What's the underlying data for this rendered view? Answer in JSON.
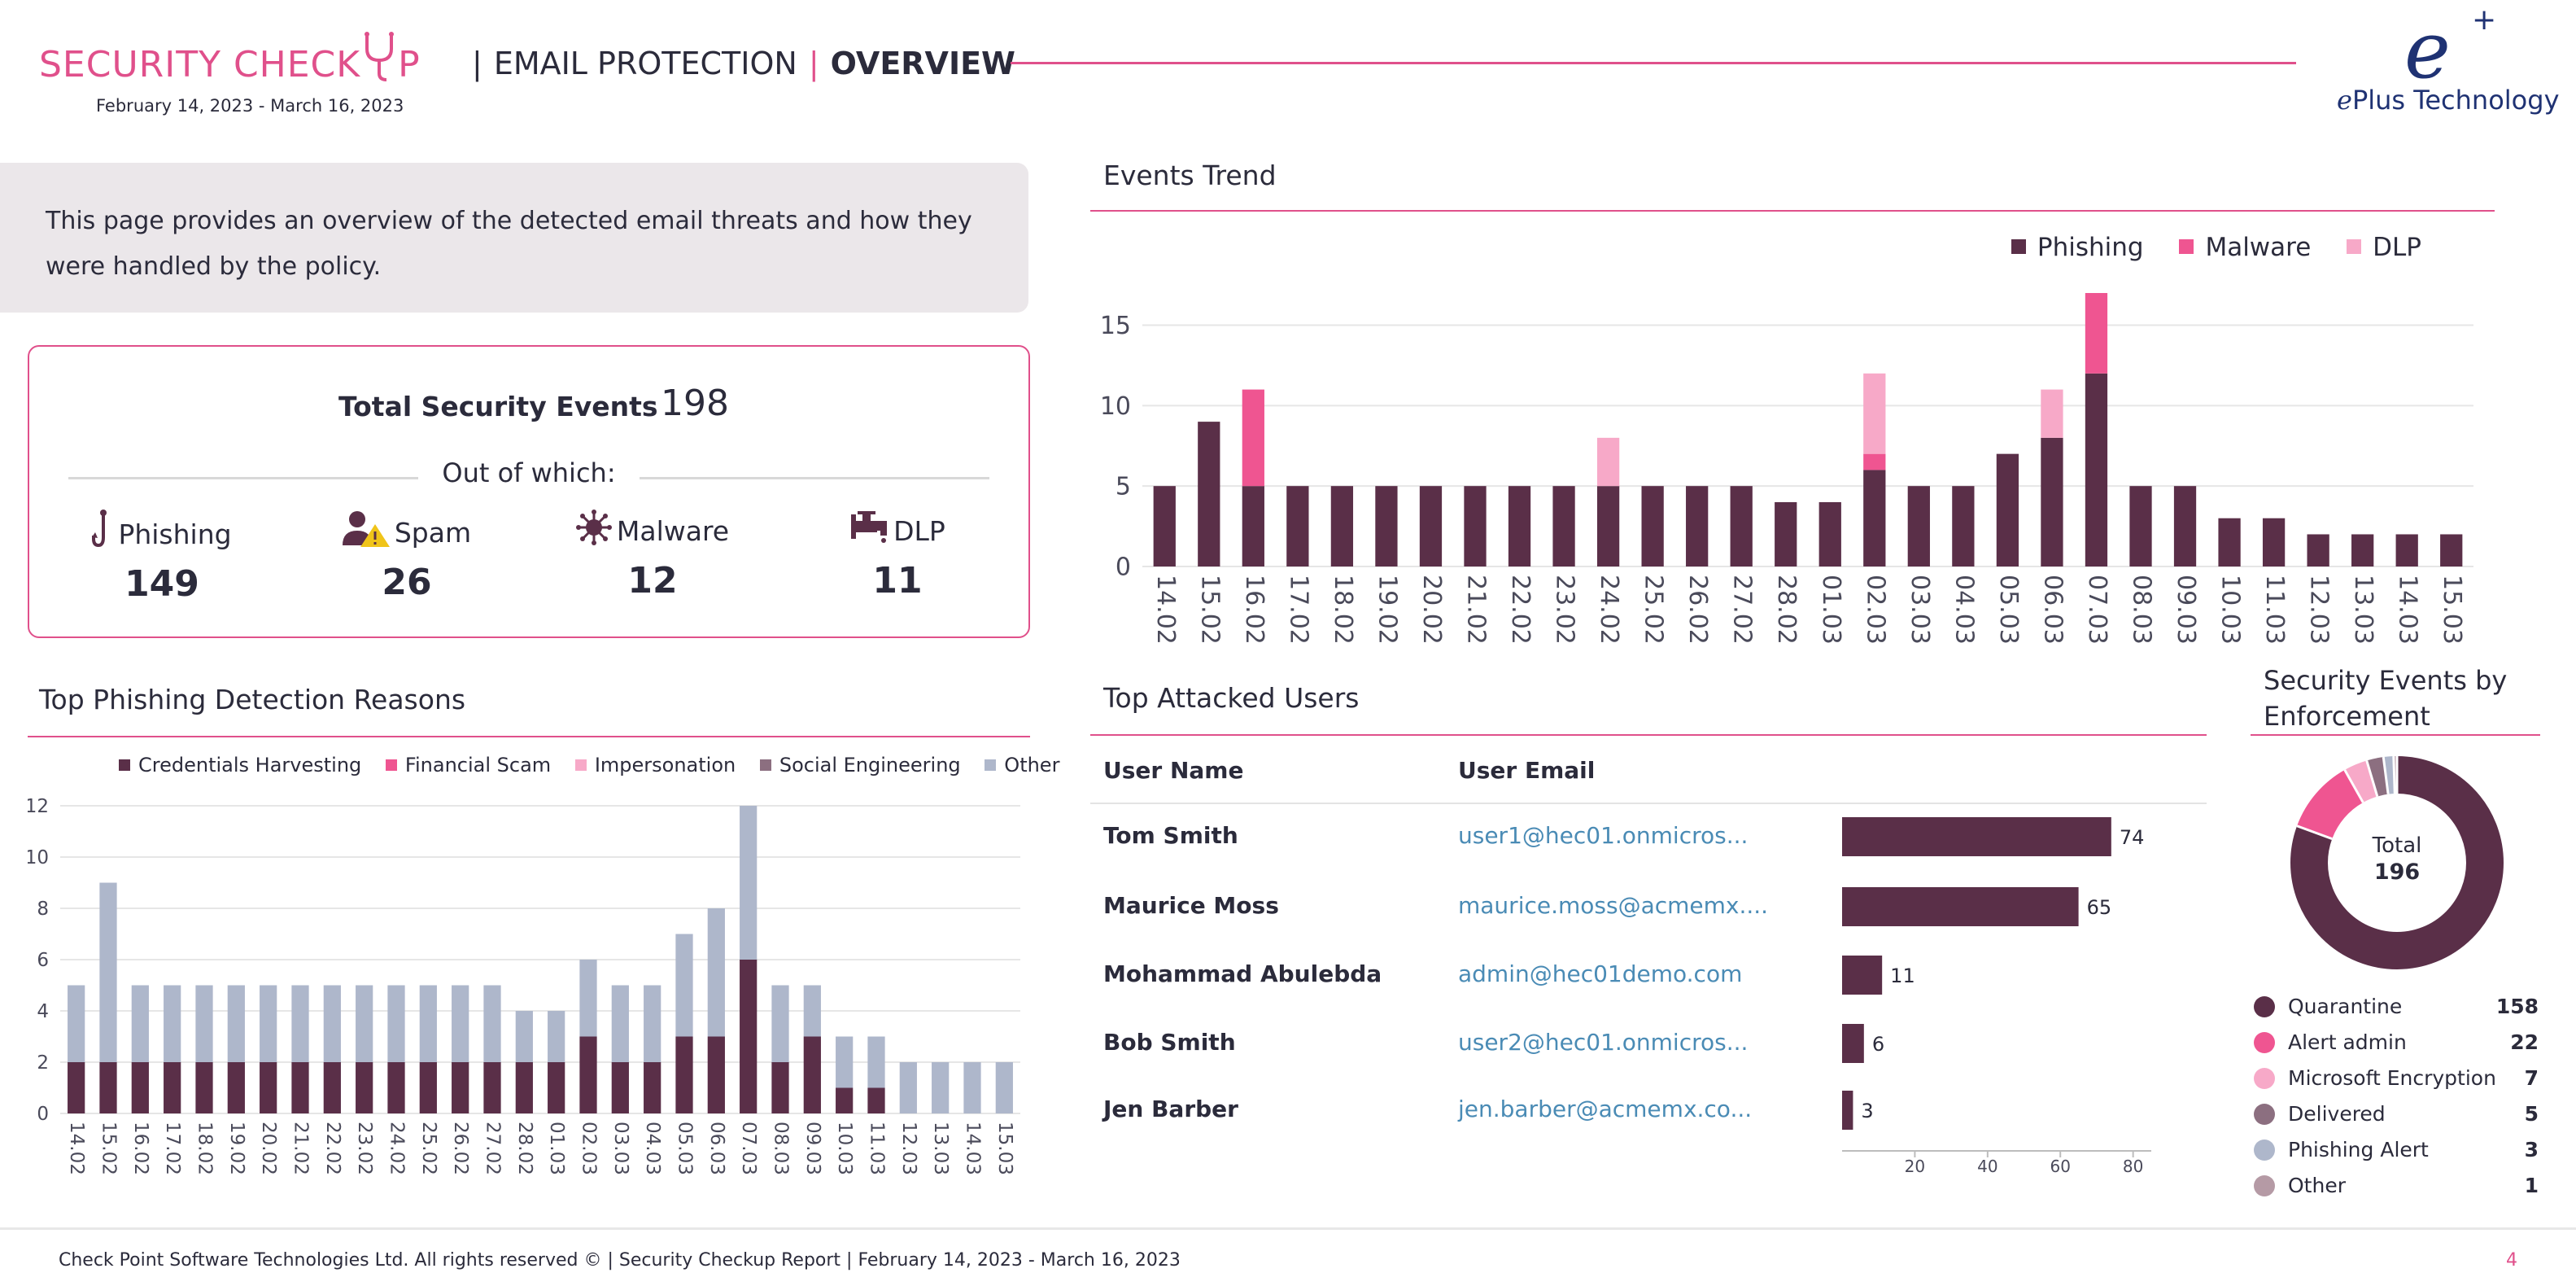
{
  "header": {
    "brand": "SECURITY CHECK",
    "brand_tail": "P",
    "section": "EMAIL PROTECTION",
    "page": "OVERVIEW",
    "date_range": "February 14, 2023 - March 16, 2023",
    "logo_mark": "e",
    "logo_plus": "+",
    "logo_text_e": "e",
    "logo_text": "Plus Technology"
  },
  "intro": "This page provides an overview of the detected email threats and how they were handled by the policy.",
  "summary": {
    "title": "Total Security Events",
    "total": "198",
    "out_of": "Out of which:",
    "items": [
      {
        "label": "Phishing",
        "value": "149",
        "icon": "hook-icon"
      },
      {
        "label": "Spam",
        "value": "26",
        "icon": "spam-user-warning-icon"
      },
      {
        "label": "Malware",
        "value": "12",
        "icon": "virus-icon"
      },
      {
        "label": "DLP",
        "value": "11",
        "icon": "faucet-icon"
      }
    ]
  },
  "colors": {
    "accent": "#e0508b",
    "phishing": "#5a2f48",
    "malware": "#ef5591",
    "dlp": "#f7a9c8",
    "other": "#aeb7cb",
    "social": "#8c6f80",
    "link": "#4a8bb5"
  },
  "events_trend": {
    "title": "Events Trend",
    "legend": [
      "Phishing",
      "Malware",
      "DLP"
    ],
    "chart_data": {
      "type": "bar",
      "stacked": true,
      "categories": [
        "14.02",
        "15.02",
        "16.02",
        "17.02",
        "18.02",
        "19.02",
        "20.02",
        "21.02",
        "22.02",
        "23.02",
        "24.02",
        "25.02",
        "26.02",
        "27.02",
        "28.02",
        "01.03",
        "02.03",
        "03.03",
        "04.03",
        "05.03",
        "06.03",
        "07.03",
        "08.03",
        "09.03",
        "10.03",
        "11.03",
        "12.03",
        "13.03",
        "14.03",
        "15.03"
      ],
      "series": [
        {
          "name": "Phishing",
          "values": [
            5,
            9,
            5,
            5,
            5,
            5,
            5,
            5,
            5,
            5,
            5,
            5,
            5,
            5,
            4,
            4,
            6,
            5,
            5,
            7,
            8,
            12,
            5,
            5,
            3,
            3,
            2,
            2,
            2,
            2
          ]
        },
        {
          "name": "Malware",
          "values": [
            0,
            0,
            6,
            0,
            0,
            0,
            0,
            0,
            0,
            0,
            0,
            0,
            0,
            0,
            0,
            0,
            1,
            0,
            0,
            0,
            0,
            5,
            0,
            0,
            0,
            0,
            0,
            0,
            0,
            0
          ]
        },
        {
          "name": "DLP",
          "values": [
            0,
            0,
            0,
            0,
            0,
            0,
            0,
            0,
            0,
            0,
            3,
            0,
            0,
            0,
            0,
            0,
            5,
            0,
            0,
            0,
            3,
            0,
            0,
            0,
            0,
            0,
            0,
            0,
            0,
            0
          ]
        }
      ],
      "yticks": [
        "0",
        "5",
        "10",
        "15"
      ],
      "ylim": [
        0,
        17
      ],
      "grid": true,
      "legend_position": "top-right"
    }
  },
  "phishing_reasons": {
    "title": "Top Phishing Detection Reasons",
    "legend": [
      "Credentials Harvesting",
      "Financial Scam",
      "Impersonation",
      "Social Engineering",
      "Other"
    ],
    "chart_data": {
      "type": "bar",
      "stacked": true,
      "categories": [
        "14.02",
        "15.02",
        "16.02",
        "17.02",
        "18.02",
        "19.02",
        "20.02",
        "21.02",
        "22.02",
        "23.02",
        "24.02",
        "25.02",
        "26.02",
        "27.02",
        "28.02",
        "01.03",
        "02.03",
        "03.03",
        "04.03",
        "05.03",
        "06.03",
        "07.03",
        "08.03",
        "09.03",
        "10.03",
        "11.03",
        "12.03",
        "13.03",
        "14.03",
        "15.03"
      ],
      "series": [
        {
          "name": "Credentials Harvesting",
          "values": [
            2,
            2,
            2,
            2,
            2,
            2,
            2,
            2,
            2,
            2,
            2,
            2,
            2,
            2,
            2,
            2,
            3,
            2,
            2,
            3,
            3,
            6,
            2,
            3,
            1,
            1,
            0,
            0,
            0,
            0
          ]
        },
        {
          "name": "Financial Scam",
          "values": [
            0,
            0,
            0,
            0,
            0,
            0,
            0,
            0,
            0,
            0,
            0,
            0,
            0,
            0,
            0,
            0,
            0,
            0,
            0,
            0,
            0,
            0,
            0,
            0,
            0,
            0,
            0,
            0,
            0,
            0
          ]
        },
        {
          "name": "Impersonation",
          "values": [
            0,
            0,
            0,
            0,
            0,
            0,
            0,
            0,
            0,
            0,
            0,
            0,
            0,
            0,
            0,
            0,
            0,
            0,
            0,
            0,
            0,
            0,
            0,
            0,
            0,
            0,
            0,
            0,
            0,
            0
          ]
        },
        {
          "name": "Social Engineering",
          "values": [
            0,
            0,
            0,
            0,
            0,
            0,
            0,
            0,
            0,
            0,
            0,
            0,
            0,
            0,
            0,
            0,
            0,
            0,
            0,
            0,
            0,
            0,
            0,
            0,
            0,
            0,
            0,
            0,
            0,
            0
          ]
        },
        {
          "name": "Other",
          "values": [
            3,
            7,
            3,
            3,
            3,
            3,
            3,
            3,
            3,
            3,
            3,
            3,
            3,
            3,
            2,
            2,
            3,
            3,
            3,
            4,
            5,
            6,
            3,
            2,
            2,
            2,
            2,
            2,
            2,
            2
          ]
        }
      ],
      "yticks": [
        "0",
        "2",
        "4",
        "6",
        "8",
        "10",
        "12"
      ],
      "ylim": [
        0,
        12
      ],
      "grid": true,
      "legend_position": "top"
    }
  },
  "top_users": {
    "title": "Top Attacked Users",
    "col_name": "User Name",
    "col_email": "User Email",
    "rows": [
      {
        "name": "Tom Smith",
        "email": "user1@hec01.onmicros...",
        "count": 74
      },
      {
        "name": "Maurice Moss",
        "email": "maurice.moss@acmemx....",
        "count": 65
      },
      {
        "name": "Mohammad Abulebda",
        "email": "admin@hec01demo.com",
        "count": 11
      },
      {
        "name": "Bob Smith",
        "email": "user2@hec01.onmicros...",
        "count": 6
      },
      {
        "name": "Jen Barber",
        "email": "jen.barber@acmemx.co...",
        "count": 3
      }
    ],
    "chart_data": {
      "type": "bar",
      "orientation": "horizontal",
      "categories": [
        "Tom Smith",
        "Maurice Moss",
        "Mohammad Abulebda",
        "Bob Smith",
        "Jen Barber"
      ],
      "values": [
        74,
        65,
        11,
        6,
        3
      ],
      "xticks": [
        "20",
        "40",
        "60",
        "80"
      ],
      "xlim": [
        0,
        85
      ]
    }
  },
  "enforcement": {
    "title_line1": "Security Events by",
    "title_line2": "Enforcement",
    "total_label": "Total",
    "total": "196",
    "chart_data": {
      "type": "pie",
      "donut": true,
      "categories": [
        "Quarantine",
        "Alert admin",
        "Microsoft Encryption",
        "Delivered",
        "Phishing Alert",
        "Other"
      ],
      "values": [
        158,
        22,
        7,
        5,
        3,
        1
      ],
      "colors": [
        "#5a2f48",
        "#ef5591",
        "#f7a9c8",
        "#8c6f80",
        "#aeb7cb",
        "#b59aa5"
      ]
    },
    "rows": [
      {
        "label": "Quarantine",
        "value": "158"
      },
      {
        "label": "Alert admin",
        "value": "22"
      },
      {
        "label": "Microsoft Encryption",
        "value": "7"
      },
      {
        "label": "Delivered",
        "value": "5"
      },
      {
        "label": "Phishing Alert",
        "value": "3"
      },
      {
        "label": "Other",
        "value": "1"
      }
    ]
  },
  "footer": {
    "text": "Check Point Software Technologies Ltd. All rights reserved © | Security Checkup Report | February 14, 2023 - March 16, 2023",
    "page_number": "4"
  }
}
